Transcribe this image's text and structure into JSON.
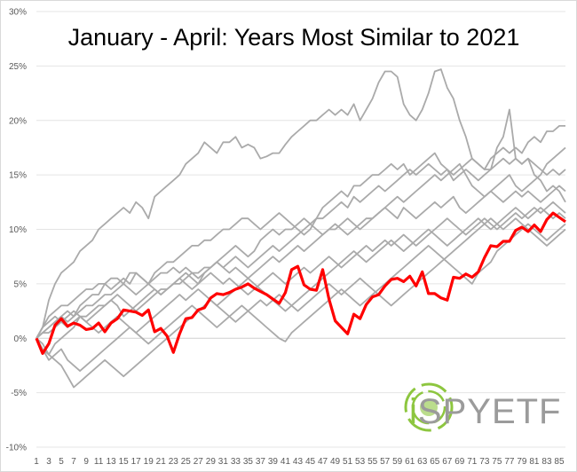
{
  "chart_data": {
    "type": "line",
    "title": "January - April: Years Most Similar to 2021",
    "xlabel": "",
    "ylabel": "",
    "ylim": [
      -0.1,
      0.3
    ],
    "xlim": [
      1,
      86
    ],
    "y_ticks": [
      -0.1,
      -0.05,
      0,
      0.05,
      0.1,
      0.15,
      0.2,
      0.25,
      0.3
    ],
    "y_tick_labels": [
      "-10%",
      "-5%",
      "0%",
      "5%",
      "10%",
      "15%",
      "20%",
      "25%",
      "30%"
    ],
    "x_tick_labels": [
      "1",
      "3",
      "5",
      "7",
      "9",
      "11",
      "13",
      "15",
      "17",
      "19",
      "21",
      "23",
      "25",
      "27",
      "29",
      "31",
      "33",
      "35",
      "37",
      "39",
      "41",
      "43",
      "45",
      "47",
      "49",
      "51",
      "53",
      "55",
      "57",
      "59",
      "61",
      "63",
      "65",
      "67",
      "69",
      "71",
      "73",
      "75",
      "77",
      "79",
      "81",
      "83",
      "85"
    ],
    "grid": "horizontal",
    "legend": "none",
    "highlight_color": "#ff0000",
    "other_color": "#aaaaaa",
    "series": [
      {
        "highlight": false,
        "values": [
          0,
          0.01,
          0.035,
          0.05,
          0.06,
          0.065,
          0.07,
          0.08,
          0.085,
          0.09,
          0.1,
          0.105,
          0.11,
          0.115,
          0.12,
          0.115,
          0.125,
          0.12,
          0.11,
          0.13,
          0.135,
          0.14,
          0.145,
          0.15,
          0.16,
          0.165,
          0.17,
          0.18,
          0.175,
          0.17,
          0.18,
          0.18,
          0.185,
          0.175,
          0.178,
          0.175,
          0.165,
          0.167,
          0.17,
          0.17,
          0.178,
          0.185,
          0.19,
          0.195,
          0.2,
          0.2,
          0.205,
          0.21,
          0.205,
          0.21,
          0.205,
          0.215,
          0.2,
          0.21,
          0.22,
          0.235,
          0.245,
          0.245,
          0.24,
          0.215,
          0.205,
          0.2,
          0.21,
          0.225,
          0.245,
          0.247,
          0.23,
          0.22,
          0.2,
          0.185,
          0.165,
          0.16,
          0.155,
          0.155,
          0.175,
          0.185,
          0.21,
          0.165,
          0.16,
          0.165,
          0.15,
          0.145,
          0.135,
          0.14,
          0.135,
          0.125
        ]
      },
      {
        "highlight": false,
        "values": [
          0,
          0.005,
          0.01,
          0.015,
          0.02,
          0.025,
          0.02,
          0.03,
          0.035,
          0.04,
          0.04,
          0.05,
          0.055,
          0.055,
          0.05,
          0.06,
          0.06,
          0.055,
          0.05,
          0.06,
          0.065,
          0.07,
          0.07,
          0.075,
          0.08,
          0.085,
          0.085,
          0.09,
          0.09,
          0.095,
          0.1,
          0.1,
          0.105,
          0.11,
          0.11,
          0.105,
          0.1,
          0.105,
          0.11,
          0.115,
          0.11,
          0.105,
          0.1,
          0.095,
          0.1,
          0.11,
          0.12,
          0.125,
          0.13,
          0.135,
          0.13,
          0.14,
          0.14,
          0.145,
          0.15,
          0.15,
          0.155,
          0.16,
          0.155,
          0.16,
          0.15,
          0.155,
          0.16,
          0.165,
          0.17,
          0.16,
          0.155,
          0.15,
          0.155,
          0.16,
          0.165,
          0.16,
          0.155,
          0.165,
          0.17,
          0.175,
          0.17,
          0.175,
          0.17,
          0.18,
          0.185,
          0.18,
          0.19,
          0.19,
          0.195,
          0.195
        ]
      },
      {
        "highlight": false,
        "values": [
          0,
          -0.01,
          -0.015,
          -0.005,
          0,
          0.005,
          0.01,
          0.02,
          0.02,
          0.025,
          0.03,
          0.03,
          0.035,
          0.03,
          0.02,
          0.025,
          0.03,
          0.035,
          0.04,
          0.045,
          0.04,
          0.045,
          0.05,
          0.055,
          0.06,
          0.055,
          0.05,
          0.06,
          0.065,
          0.07,
          0.065,
          0.07,
          0.075,
          0.07,
          0.065,
          0.07,
          0.075,
          0.08,
          0.085,
          0.08,
          0.085,
          0.09,
          0.095,
          0.1,
          0.105,
          0.11,
          0.11,
          0.115,
          0.12,
          0.125,
          0.12,
          0.13,
          0.125,
          0.13,
          0.135,
          0.14,
          0.135,
          0.14,
          0.145,
          0.15,
          0.155,
          0.15,
          0.155,
          0.16,
          0.155,
          0.15,
          0.155,
          0.145,
          0.15,
          0.155,
          0.15,
          0.145,
          0.15,
          0.155,
          0.16,
          0.165,
          0.16,
          0.165,
          0.16,
          0.165,
          0.16,
          0.155,
          0.15,
          0.155,
          0.15,
          0.155
        ]
      },
      {
        "highlight": false,
        "values": [
          0,
          0.01,
          0.02,
          0.025,
          0.03,
          0.03,
          0.035,
          0.04,
          0.045,
          0.045,
          0.05,
          0.05,
          0.045,
          0.05,
          0.055,
          0.05,
          0.06,
          0.055,
          0.05,
          0.055,
          0.06,
          0.06,
          0.065,
          0.06,
          0.065,
          0.06,
          0.055,
          0.06,
          0.065,
          0.07,
          0.075,
          0.08,
          0.085,
          0.08,
          0.075,
          0.08,
          0.09,
          0.095,
          0.1,
          0.095,
          0.1,
          0.1,
          0.105,
          0.11,
          0.105,
          0.1,
          0.095,
          0.1,
          0.105,
          0.1,
          0.095,
          0.1,
          0.105,
          0.11,
          0.11,
          0.115,
          0.12,
          0.125,
          0.13,
          0.125,
          0.13,
          0.135,
          0.14,
          0.145,
          0.15,
          0.145,
          0.15,
          0.155,
          0.16,
          0.15,
          0.14,
          0.135,
          0.13,
          0.135,
          0.14,
          0.145,
          0.15,
          0.14,
          0.135,
          0.14,
          0.145,
          0.15,
          0.16,
          0.165,
          0.17,
          0.175
        ]
      },
      {
        "highlight": false,
        "values": [
          0,
          0.005,
          0.005,
          0.01,
          0.015,
          0.02,
          0.025,
          0.02,
          0.015,
          0.02,
          0.025,
          0.03,
          0.035,
          0.04,
          0.035,
          0.03,
          0.025,
          0.03,
          0.035,
          0.04,
          0.045,
          0.045,
          0.05,
          0.05,
          0.055,
          0.06,
          0.06,
          0.065,
          0.065,
          0.07,
          0.065,
          0.06,
          0.065,
          0.06,
          0.055,
          0.06,
          0.065,
          0.07,
          0.075,
          0.07,
          0.075,
          0.08,
          0.085,
          0.08,
          0.085,
          0.09,
          0.095,
          0.1,
          0.1,
          0.105,
          0.11,
          0.105,
          0.1,
          0.105,
          0.11,
          0.115,
          0.12,
          0.115,
          0.11,
          0.12,
          0.115,
          0.11,
          0.115,
          0.12,
          0.125,
          0.12,
          0.125,
          0.13,
          0.12,
          0.115,
          0.12,
          0.125,
          0.13,
          0.135,
          0.13,
          0.125,
          0.13,
          0.135,
          0.13,
          0.135,
          0.13,
          0.125,
          0.13,
          0.135,
          0.14,
          0.135
        ]
      },
      {
        "highlight": false,
        "values": [
          0,
          0.005,
          0.01,
          0.015,
          0.02,
          0.015,
          0.02,
          0.025,
          0.03,
          0.03,
          0.035,
          0.04,
          0.04,
          0.045,
          0.05,
          0.045,
          0.04,
          0.045,
          0.05,
          0.045,
          0.04,
          0.045,
          0.05,
          0.055,
          0.05,
          0.045,
          0.05,
          0.055,
          0.06,
          0.055,
          0.05,
          0.055,
          0.05,
          0.045,
          0.04,
          0.045,
          0.05,
          0.055,
          0.06,
          0.055,
          0.05,
          0.055,
          0.06,
          0.065,
          0.06,
          0.065,
          0.07,
          0.075,
          0.07,
          0.065,
          0.07,
          0.075,
          0.08,
          0.085,
          0.08,
          0.085,
          0.09,
          0.085,
          0.09,
          0.095,
          0.09,
          0.085,
          0.09,
          0.095,
          0.1,
          0.105,
          0.11,
          0.105,
          0.1,
          0.095,
          0.1,
          0.105,
          0.11,
          0.105,
          0.1,
          0.105,
          0.11,
          0.115,
          0.11,
          0.115,
          0.12,
          0.115,
          0.12,
          0.125,
          0.12,
          0.115
        ]
      },
      {
        "highlight": false,
        "values": [
          0,
          0.01,
          0.015,
          0.02,
          0.015,
          0.01,
          0.015,
          0.02,
          0.015,
          0.01,
          0.005,
          0.01,
          0.015,
          0.02,
          0.015,
          0.01,
          0.005,
          0.01,
          0.015,
          0.02,
          0.025,
          0.03,
          0.035,
          0.04,
          0.035,
          0.04,
          0.045,
          0.04,
          0.035,
          0.03,
          0.035,
          0.04,
          0.045,
          0.05,
          0.055,
          0.05,
          0.045,
          0.04,
          0.035,
          0.03,
          0.025,
          0.03,
          0.035,
          0.04,
          0.045,
          0.05,
          0.055,
          0.06,
          0.065,
          0.07,
          0.075,
          0.08,
          0.075,
          0.07,
          0.075,
          0.08,
          0.085,
          0.09,
          0.085,
          0.08,
          0.085,
          0.09,
          0.095,
          0.1,
          0.095,
          0.09,
          0.085,
          0.09,
          0.095,
          0.1,
          0.105,
          0.11,
          0.105,
          0.1,
          0.105,
          0.11,
          0.115,
          0.12,
          0.115,
          0.11,
          0.115,
          0.12,
          0.115,
          0.11,
          0.115,
          0.11
        ]
      },
      {
        "highlight": false,
        "values": [
          0,
          -0.01,
          -0.02,
          -0.015,
          -0.01,
          -0.02,
          -0.025,
          -0.03,
          -0.025,
          -0.02,
          -0.015,
          -0.01,
          -0.005,
          0,
          0.005,
          0.01,
          0.005,
          0,
          -0.005,
          0,
          0.005,
          0.01,
          0.015,
          0.02,
          0.025,
          0.03,
          0.025,
          0.03,
          0.035,
          0.03,
          0.025,
          0.02,
          0.015,
          0.02,
          0.025,
          0.03,
          0.035,
          0.03,
          0.035,
          0.04,
          0.035,
          0.03,
          0.025,
          0.03,
          0.035,
          0.04,
          0.045,
          0.05,
          0.045,
          0.04,
          0.045,
          0.05,
          0.055,
          0.05,
          0.045,
          0.04,
          0.035,
          0.03,
          0.035,
          0.04,
          0.045,
          0.05,
          0.055,
          0.06,
          0.065,
          0.07,
          0.075,
          0.08,
          0.085,
          0.09,
          0.095,
          0.1,
          0.105,
          0.11,
          0.105,
          0.1,
          0.105,
          0.11,
          0.105,
          0.1,
          0.095,
          0.09,
          0.085,
          0.09,
          0.095,
          0.1
        ]
      },
      {
        "highlight": false,
        "values": [
          0,
          -0.005,
          -0.015,
          -0.02,
          -0.025,
          -0.035,
          -0.045,
          -0.04,
          -0.035,
          -0.03,
          -0.025,
          -0.02,
          -0.025,
          -0.03,
          -0.035,
          -0.03,
          -0.025,
          -0.02,
          -0.015,
          -0.01,
          -0.005,
          0,
          0.005,
          0.01,
          0.015,
          0.02,
          0.025,
          0.02,
          0.015,
          0.01,
          0.015,
          0.02,
          0.025,
          0.03,
          0.025,
          0.02,
          0.015,
          0.01,
          0.005,
          0,
          -0.003,
          0.005,
          0.01,
          0.015,
          0.02,
          0.025,
          0.03,
          0.035,
          0.04,
          0.045,
          0.04,
          0.035,
          0.03,
          0.035,
          0.04,
          0.045,
          0.05,
          0.055,
          0.06,
          0.065,
          0.07,
          0.075,
          0.08,
          0.085,
          0.08,
          0.075,
          0.07,
          0.065,
          0.06,
          0.055,
          0.05,
          0.06,
          0.065,
          0.07,
          0.08,
          0.085,
          0.09,
          0.095,
          0.1,
          0.105,
          0.1,
          0.095,
          0.09,
          0.095,
          0.1,
          0.105
        ]
      },
      {
        "highlight": true,
        "values": [
          0,
          -0.014,
          -0.005,
          0.012,
          0.018,
          0.011,
          0.014,
          0.012,
          0.008,
          0.009,
          0.014,
          0.006,
          0.014,
          0.018,
          0.026,
          0.025,
          0.024,
          0.021,
          0.026,
          0.006,
          0.009,
          0.002,
          -0.013,
          0.004,
          0.018,
          0.019,
          0.026,
          0.028,
          0.037,
          0.041,
          0.04,
          0.042,
          0.045,
          0.047,
          0.05,
          0.046,
          0.043,
          0.04,
          0.036,
          0.032,
          0.042,
          0.063,
          0.066,
          0.049,
          0.045,
          0.044,
          0.063,
          0.036,
          0.016,
          0.01,
          0.004,
          0.022,
          0.018,
          0.031,
          0.038,
          0.04,
          0.048,
          0.054,
          0.055,
          0.052,
          0.057,
          0.048,
          0.061,
          0.041,
          0.041,
          0.037,
          0.035,
          0.056,
          0.055,
          0.059,
          0.056,
          0.061,
          0.074,
          0.085,
          0.084,
          0.089,
          0.089,
          0.099,
          0.102,
          0.098,
          0.104,
          0.098,
          0.109,
          0.115,
          0.111,
          0.107
        ]
      }
    ]
  },
  "logo": {
    "prefix": "i",
    "main": "SPY",
    "suffix": "ETF"
  }
}
